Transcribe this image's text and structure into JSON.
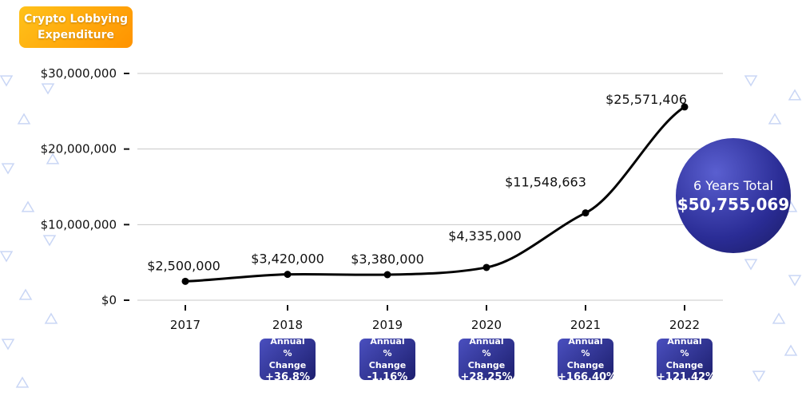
{
  "title": "Crypto Lobbying Expenditure",
  "chart_data": {
    "type": "line",
    "title": "Crypto Lobbying Expenditure",
    "categories": [
      "2017",
      "2018",
      "2019",
      "2020",
      "2021",
      "2022"
    ],
    "values": [
      2500000,
      3420000,
      3380000,
      4335000,
      11548663,
      25571406
    ],
    "data_labels": [
      "$2,500,000",
      "$3,420,000",
      "$3,380,000",
      "$4,335,000",
      "$11,548,663",
      "$25,571,406"
    ],
    "ylim": [
      0,
      30000000
    ],
    "yticks": [
      0,
      10000000,
      20000000,
      30000000
    ],
    "ytick_labels": [
      "$0",
      "$10,000,000",
      "$20,000,000",
      "$30,000,000"
    ],
    "grid": true,
    "line_color": "#000000",
    "annual_change": [
      {
        "year": "2018",
        "label": "Annual % Change",
        "value": "+36.8%"
      },
      {
        "year": "2019",
        "label": "Annual % Change",
        "value": "-1.16%"
      },
      {
        "year": "2020",
        "label": "Annual % Change",
        "value": "+28.25%"
      },
      {
        "year": "2021",
        "label": "Annual % Change",
        "value": "+166.40%"
      },
      {
        "year": "2022",
        "label": "Annual % Change",
        "value": "+121.42%"
      }
    ],
    "total": {
      "label": "6 Years Total",
      "value": "$50,755,069"
    }
  },
  "colors": {
    "title_badge": "#ff9f0a",
    "badge": "#2d2f8a",
    "decor": "#c9d6f5"
  }
}
